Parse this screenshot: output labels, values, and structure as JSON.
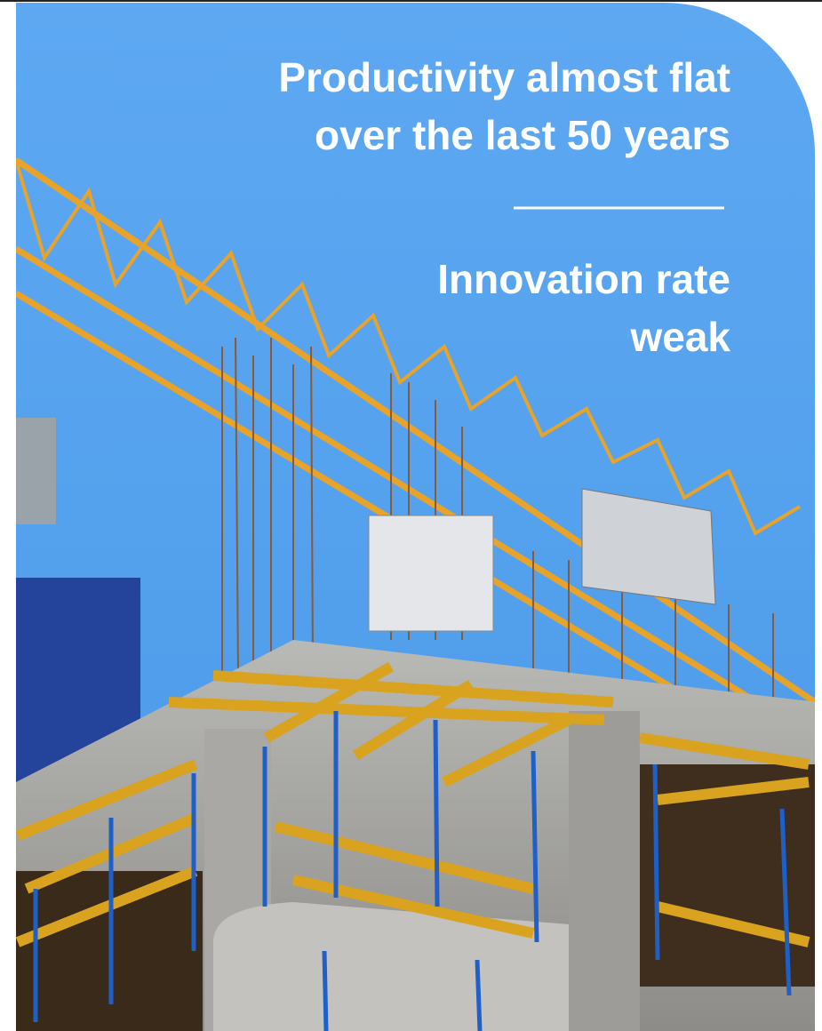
{
  "headline": {
    "lines": [
      "Productivity almost flat",
      "over the last 50 years"
    ]
  },
  "subheadline": {
    "lines": [
      "Innovation rate",
      "weak"
    ]
  }
}
